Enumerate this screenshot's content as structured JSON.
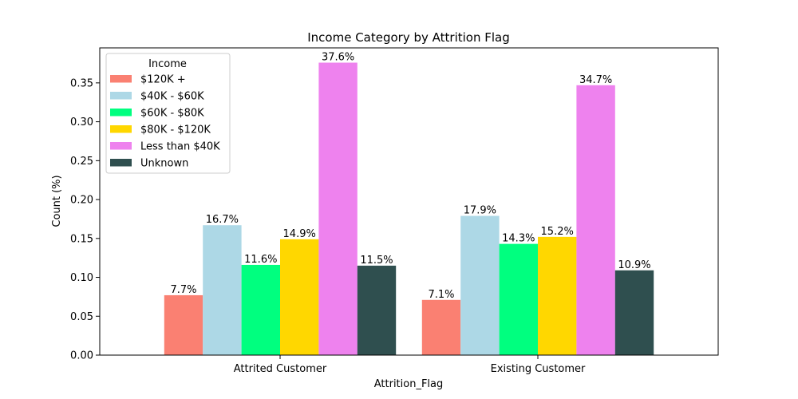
{
  "chart_data": {
    "type": "bar",
    "title": "Income Category by Attrition Flag",
    "xlabel": "Attrition_Flag",
    "ylabel": "Count (%)",
    "categories": [
      "Attrited Customer",
      "Existing Customer"
    ],
    "ylim": [
      0,
      0.395
    ],
    "yticks": [
      "0.00",
      "0.05",
      "0.10",
      "0.15",
      "0.20",
      "0.25",
      "0.30",
      "0.35"
    ],
    "legend": {
      "title": "Income",
      "position": "top-left"
    },
    "series": [
      {
        "name": "$120K +",
        "color": "#fa8072",
        "values": [
          0.077,
          0.071
        ],
        "labels": [
          "7.7%",
          "7.1%"
        ]
      },
      {
        "name": "$40K - $60K",
        "color": "#add8e6",
        "values": [
          0.167,
          0.179
        ],
        "labels": [
          "16.7%",
          "17.9%"
        ]
      },
      {
        "name": "$60K - $80K",
        "color": "#00ff7f",
        "values": [
          0.116,
          0.143
        ],
        "labels": [
          "11.6%",
          "14.3%"
        ]
      },
      {
        "name": "$80K - $120K",
        "color": "#ffd700",
        "values": [
          0.149,
          0.152
        ],
        "labels": [
          "14.9%",
          "15.2%"
        ]
      },
      {
        "name": "Less than $40K",
        "color": "#ee82ee",
        "values": [
          0.376,
          0.347
        ],
        "labels": [
          "37.6%",
          "34.7%"
        ]
      },
      {
        "name": "Unknown",
        "color": "#2f4f4f",
        "values": [
          0.115,
          0.109
        ],
        "labels": [
          "11.5%",
          "10.9%"
        ]
      }
    ]
  }
}
